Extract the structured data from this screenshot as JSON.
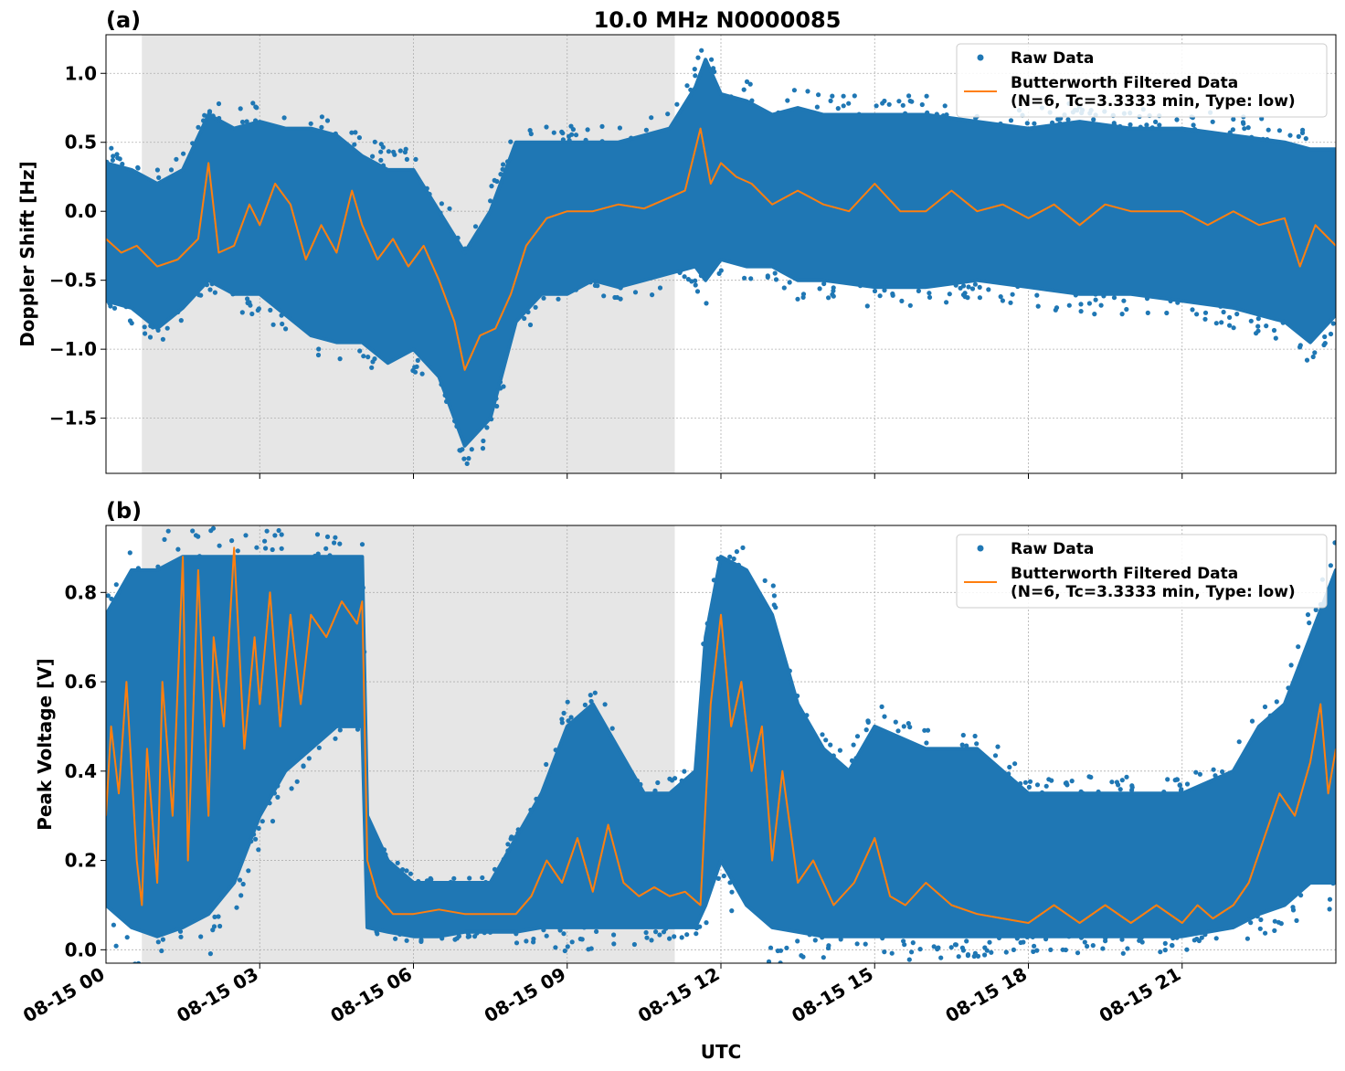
{
  "figure": {
    "title": "10.0 MHz N0000085",
    "xlabel": "UTC",
    "x_tick_labels": [
      "08-15 00",
      "08-15 03",
      "08-15 06",
      "08-15 09",
      "08-15 12",
      "08-15 15",
      "08-15 18",
      "08-15 21"
    ],
    "colors": {
      "raw": "#1f77b4",
      "filtered": "#ff7f0e",
      "shade": "#e6e6e6",
      "grid": "#b0b0b0"
    }
  },
  "chart_data": [
    {
      "type": "line",
      "panel_label": "(a)",
      "title": "10.0 MHz N0000085",
      "xlabel": "",
      "ylabel": "Doppler Shift [Hz]",
      "x_unit": "hours UTC on 08-15",
      "xlim": [
        0,
        24
      ],
      "ylim": [
        -1.9,
        1.28
      ],
      "y_ticks": [
        1.0,
        0.5,
        0.0,
        -0.5,
        -1.0,
        -1.5
      ],
      "y_tick_labels": [
        "1.0",
        "0.5",
        "0.0",
        "−0.5",
        "−1.0",
        "−1.5"
      ],
      "shaded_region": [
        0.7,
        11.1
      ],
      "grid": true,
      "legend": {
        "placement": "upper right",
        "entries": [
          "Raw Data",
          "Butterworth Filtered Data",
          "(N=6, Tc=3.3333 min, Type: low)"
        ]
      },
      "series": [
        {
          "name": "Raw Data",
          "style": "scatter-band",
          "x": [
            0,
            0.5,
            1,
            1.5,
            2,
            2.5,
            3,
            3.5,
            4,
            4.5,
            5,
            5.5,
            6,
            6.5,
            7,
            7.5,
            8,
            8.5,
            9,
            9.5,
            10,
            10.5,
            11,
            11.5,
            11.7,
            12,
            12.5,
            13,
            13.5,
            14,
            15,
            16,
            17,
            18,
            19,
            20,
            21,
            22,
            23,
            23.5,
            24
          ],
          "upper": [
            0.35,
            0.3,
            0.2,
            0.3,
            0.7,
            0.6,
            0.65,
            0.6,
            0.6,
            0.55,
            0.4,
            0.3,
            0.3,
            0.0,
            -0.3,
            0.0,
            0.5,
            0.5,
            0.5,
            0.5,
            0.5,
            0.55,
            0.6,
            0.9,
            1.1,
            0.85,
            0.8,
            0.7,
            0.75,
            0.7,
            0.7,
            0.7,
            0.65,
            0.6,
            0.65,
            0.6,
            0.6,
            0.55,
            0.5,
            0.45,
            0.45
          ],
          "lower": [
            -0.65,
            -0.7,
            -0.85,
            -0.7,
            -0.5,
            -0.6,
            -0.6,
            -0.75,
            -0.9,
            -0.95,
            -0.95,
            -1.1,
            -1.0,
            -1.2,
            -1.7,
            -1.5,
            -0.8,
            -0.6,
            -0.6,
            -0.5,
            -0.55,
            -0.5,
            -0.45,
            -0.4,
            -0.5,
            -0.35,
            -0.4,
            -0.4,
            -0.5,
            -0.5,
            -0.55,
            -0.55,
            -0.5,
            -0.55,
            -0.6,
            -0.6,
            -0.65,
            -0.7,
            -0.8,
            -0.95,
            -0.75
          ]
        },
        {
          "name": "Butterworth Filtered Data",
          "x": [
            0,
            0.3,
            0.6,
            1,
            1.4,
            1.8,
            2,
            2.2,
            2.5,
            2.8,
            3,
            3.3,
            3.6,
            3.9,
            4.2,
            4.5,
            4.8,
            5,
            5.3,
            5.6,
            5.9,
            6.2,
            6.5,
            6.8,
            7,
            7.3,
            7.6,
            7.9,
            8.2,
            8.6,
            9,
            9.5,
            10,
            10.5,
            11,
            11.3,
            11.6,
            11.8,
            12,
            12.3,
            12.6,
            13,
            13.5,
            14,
            14.5,
            15,
            15.5,
            16,
            16.5,
            17,
            17.5,
            18,
            18.5,
            19,
            19.5,
            20,
            20.5,
            21,
            21.5,
            22,
            22.5,
            23,
            23.3,
            23.6,
            24
          ],
          "values": [
            -0.2,
            -0.3,
            -0.25,
            -0.4,
            -0.35,
            -0.2,
            0.35,
            -0.3,
            -0.25,
            0.05,
            -0.1,
            0.2,
            0.05,
            -0.35,
            -0.1,
            -0.3,
            0.15,
            -0.1,
            -0.35,
            -0.2,
            -0.4,
            -0.25,
            -0.5,
            -0.8,
            -1.15,
            -0.9,
            -0.85,
            -0.6,
            -0.25,
            -0.05,
            0.0,
            0.0,
            0.05,
            0.02,
            0.1,
            0.15,
            0.6,
            0.2,
            0.35,
            0.25,
            0.2,
            0.05,
            0.15,
            0.05,
            0.0,
            0.2,
            0.0,
            0.0,
            0.15,
            0.0,
            0.05,
            -0.05,
            0.05,
            -0.1,
            0.05,
            0.0,
            0.0,
            0.0,
            -0.1,
            0.0,
            -0.1,
            -0.05,
            -0.4,
            -0.1,
            -0.25
          ]
        }
      ]
    },
    {
      "type": "line",
      "panel_label": "(b)",
      "xlabel": "UTC",
      "ylabel": "Peak Voltage [V]",
      "x_unit": "hours UTC on 08-15",
      "xlim": [
        0,
        24
      ],
      "ylim": [
        -0.03,
        0.95
      ],
      "y_ticks": [
        0.0,
        0.2,
        0.4,
        0.6,
        0.8
      ],
      "y_tick_labels": [
        "0.0",
        "0.2",
        "0.4",
        "0.6",
        "0.8"
      ],
      "shaded_region": [
        0.7,
        11.1
      ],
      "grid": true,
      "legend": {
        "placement": "upper right",
        "entries": [
          "Raw Data",
          "Butterworth Filtered Data",
          "(N=6, Tc=3.3333 min, Type: low)"
        ]
      },
      "series": [
        {
          "name": "Raw Data",
          "style": "scatter-band",
          "x": [
            0,
            0.5,
            1,
            1.5,
            2,
            2.5,
            3,
            3.5,
            4,
            4.5,
            5,
            5.1,
            5.5,
            6,
            6.5,
            7,
            7.5,
            8,
            8.5,
            9,
            9.5,
            10,
            10.5,
            11,
            11.5,
            11.7,
            12,
            12.5,
            13,
            13.5,
            14,
            14.5,
            15,
            16,
            17,
            18,
            19,
            20,
            21,
            22,
            22.5,
            23,
            23.5,
            24
          ],
          "upper": [
            0.75,
            0.85,
            0.85,
            0.88,
            0.88,
            0.88,
            0.88,
            0.88,
            0.88,
            0.88,
            0.88,
            0.3,
            0.2,
            0.15,
            0.15,
            0.15,
            0.15,
            0.25,
            0.35,
            0.5,
            0.55,
            0.45,
            0.35,
            0.35,
            0.4,
            0.7,
            0.88,
            0.85,
            0.75,
            0.55,
            0.45,
            0.4,
            0.5,
            0.45,
            0.45,
            0.35,
            0.35,
            0.35,
            0.35,
            0.4,
            0.5,
            0.55,
            0.7,
            0.85
          ],
          "lower": [
            0.1,
            0.05,
            0.03,
            0.05,
            0.08,
            0.15,
            0.3,
            0.4,
            0.45,
            0.5,
            0.5,
            0.05,
            0.04,
            0.03,
            0.03,
            0.04,
            0.04,
            0.04,
            0.05,
            0.05,
            0.05,
            0.05,
            0.05,
            0.05,
            0.05,
            0.1,
            0.2,
            0.1,
            0.05,
            0.04,
            0.03,
            0.03,
            0.03,
            0.03,
            0.03,
            0.03,
            0.03,
            0.03,
            0.03,
            0.05,
            0.08,
            0.1,
            0.15,
            0.15
          ]
        },
        {
          "name": "Butterworth Filtered Data",
          "x": [
            0,
            0.1,
            0.25,
            0.4,
            0.6,
            0.7,
            0.8,
            1.0,
            1.1,
            1.3,
            1.5,
            1.6,
            1.8,
            2.0,
            2.1,
            2.3,
            2.5,
            2.7,
            2.9,
            3.0,
            3.2,
            3.4,
            3.6,
            3.8,
            4.0,
            4.3,
            4.6,
            4.9,
            5.0,
            5.1,
            5.3,
            5.6,
            6,
            6.5,
            7,
            7.5,
            8,
            8.3,
            8.6,
            8.9,
            9.2,
            9.5,
            9.8,
            10.1,
            10.4,
            10.7,
            11,
            11.3,
            11.6,
            11.8,
            12,
            12.2,
            12.4,
            12.6,
            12.8,
            13,
            13.2,
            13.5,
            13.8,
            14.2,
            14.6,
            15,
            15.3,
            15.6,
            16,
            16.5,
            17,
            17.5,
            18,
            18.5,
            19,
            19.5,
            20,
            20.5,
            21,
            21.3,
            21.6,
            22,
            22.3,
            22.6,
            22.9,
            23.2,
            23.5,
            23.7,
            23.85,
            24
          ],
          "values": [
            0.3,
            0.5,
            0.35,
            0.6,
            0.2,
            0.1,
            0.45,
            0.15,
            0.6,
            0.3,
            0.88,
            0.2,
            0.85,
            0.3,
            0.7,
            0.5,
            0.9,
            0.45,
            0.7,
            0.55,
            0.8,
            0.5,
            0.75,
            0.55,
            0.75,
            0.7,
            0.78,
            0.73,
            0.78,
            0.2,
            0.12,
            0.08,
            0.08,
            0.09,
            0.08,
            0.08,
            0.08,
            0.12,
            0.2,
            0.15,
            0.25,
            0.13,
            0.28,
            0.15,
            0.12,
            0.14,
            0.12,
            0.13,
            0.1,
            0.55,
            0.75,
            0.5,
            0.6,
            0.4,
            0.5,
            0.2,
            0.4,
            0.15,
            0.2,
            0.1,
            0.15,
            0.25,
            0.12,
            0.1,
            0.15,
            0.1,
            0.08,
            0.07,
            0.06,
            0.1,
            0.06,
            0.1,
            0.06,
            0.1,
            0.06,
            0.1,
            0.07,
            0.1,
            0.15,
            0.25,
            0.35,
            0.3,
            0.42,
            0.55,
            0.35,
            0.45
          ]
        }
      ]
    }
  ]
}
